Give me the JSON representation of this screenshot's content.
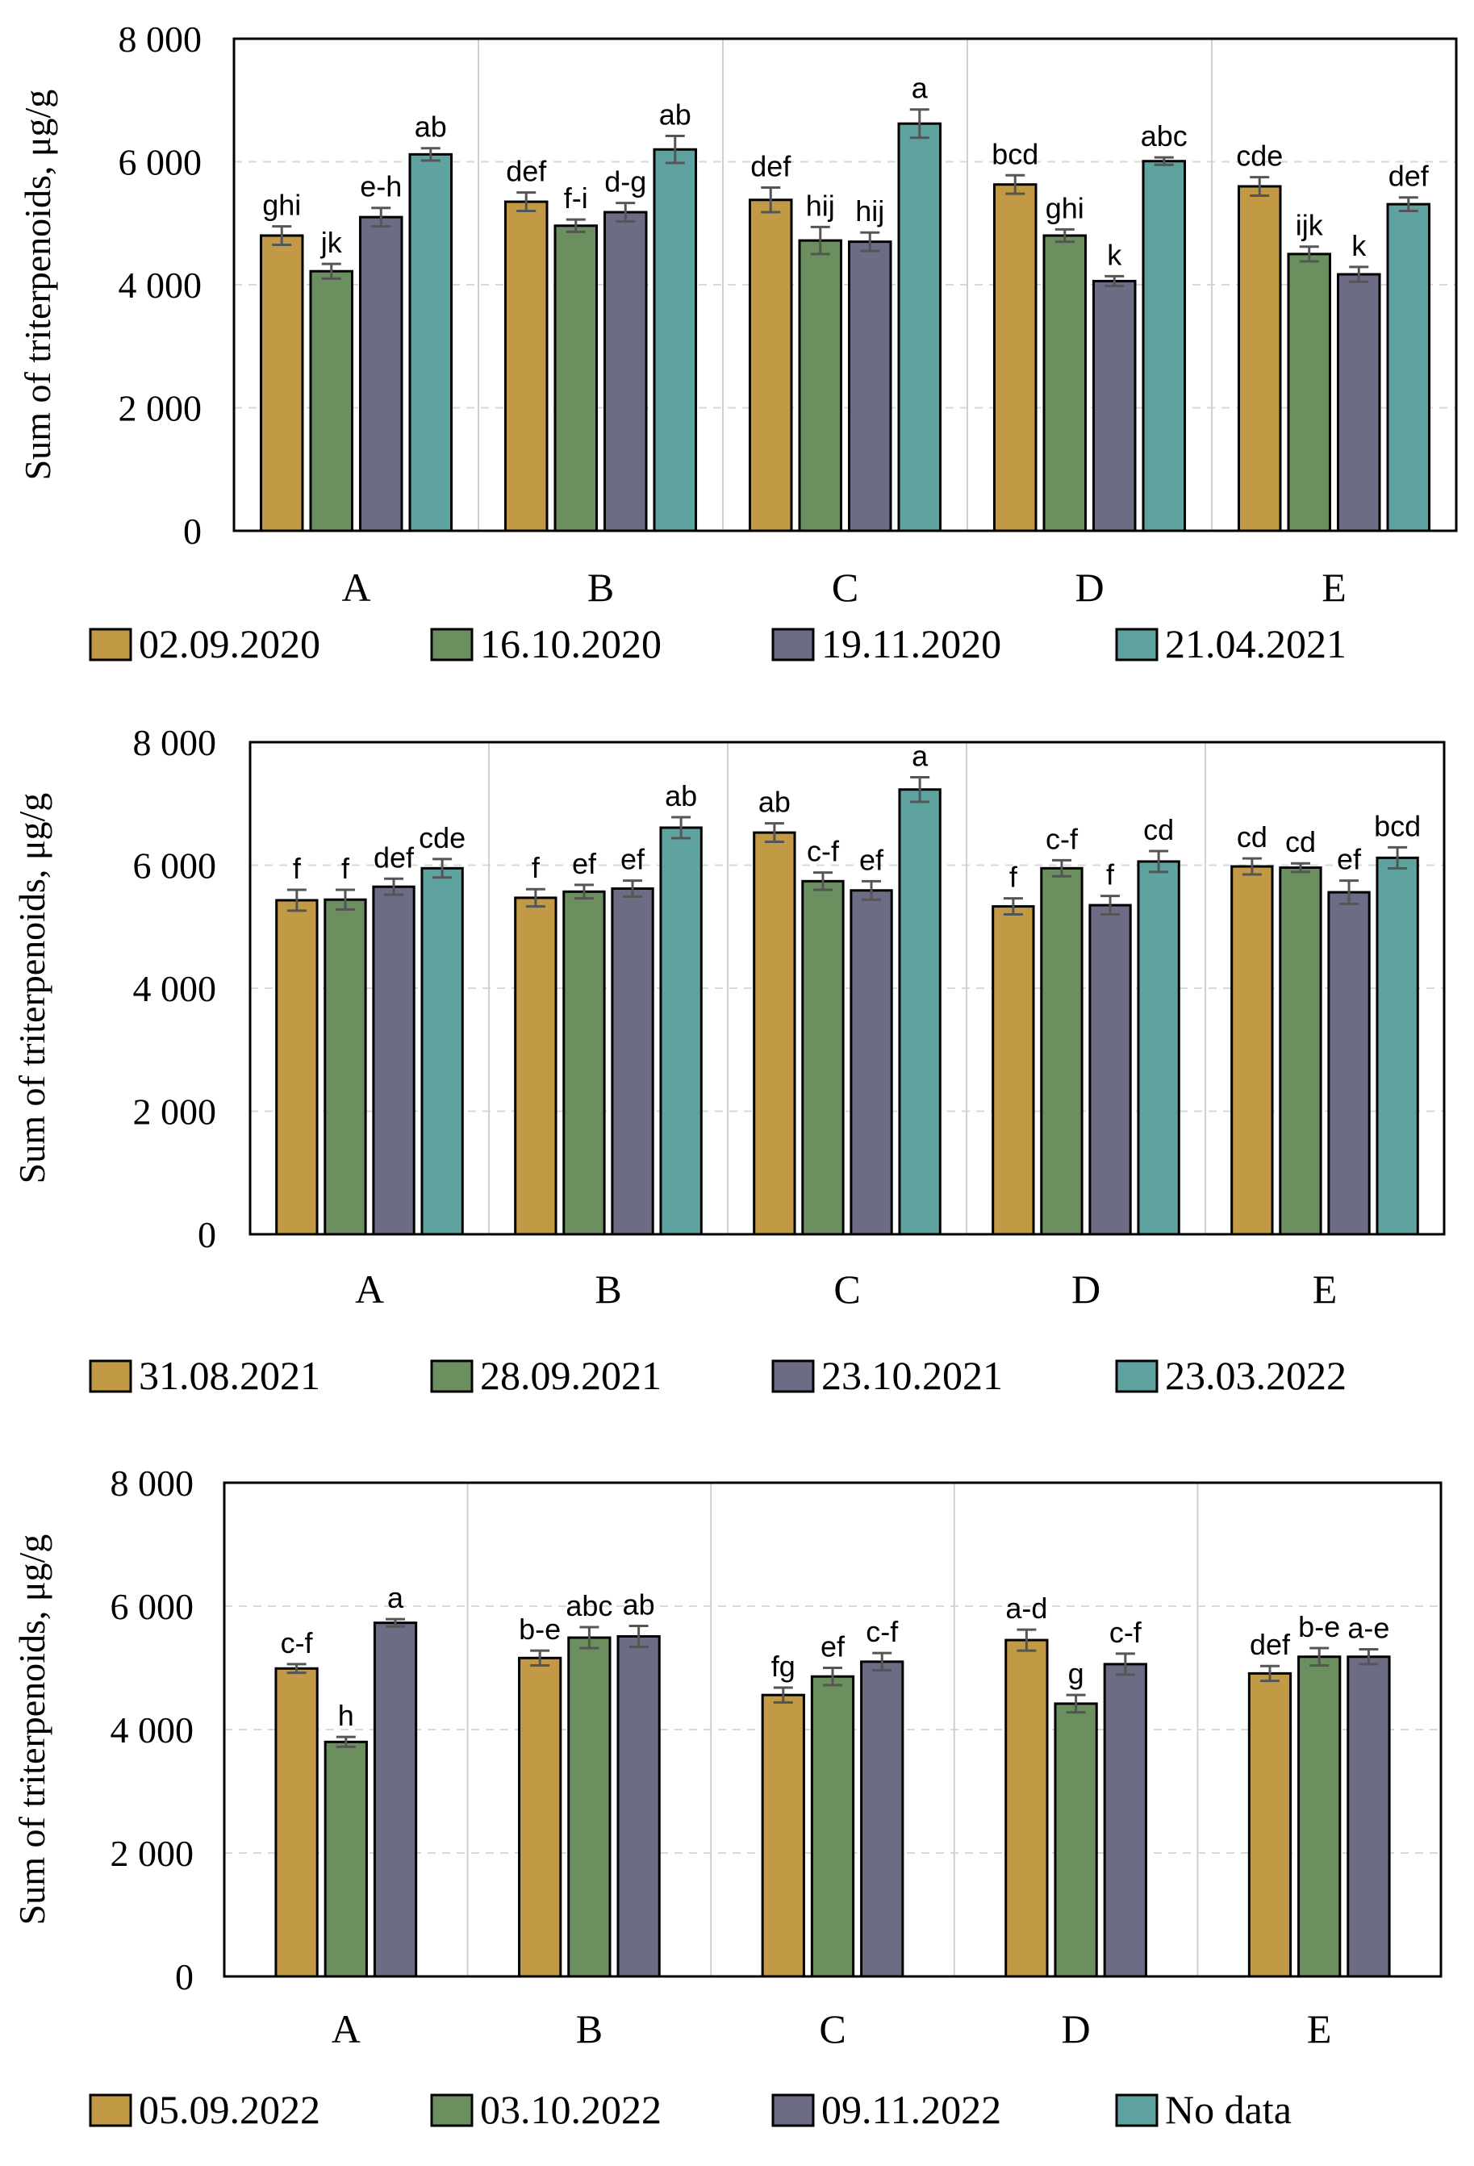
{
  "colors": {
    "series": [
      "#c29a45",
      "#6b8f5e",
      "#6c6d84",
      "#5ea39f"
    ],
    "gridline": "#d9d9d9",
    "separator": "#d0d0d0",
    "errorbar": "#555555",
    "axis": "#000000"
  },
  "chart_data": [
    {
      "type": "bar",
      "categories": [
        "A",
        "B",
        "C",
        "D",
        "E"
      ],
      "ylabel": "Sum of triterpenoids, μg/g",
      "ylim": [
        0,
        8000
      ],
      "yticks": [
        0,
        2000,
        4000,
        6000,
        8000
      ],
      "ytick_labels": [
        "0",
        "2 000",
        "4 000",
        "6 000",
        "8 000"
      ],
      "grid": "horizontal dashed",
      "legend_position": "bottom",
      "series": [
        {
          "name": "02.09.2020",
          "values": [
            4800,
            5350,
            5380,
            5630,
            5600
          ],
          "errors": [
            150,
            150,
            200,
            150,
            150
          ],
          "labels": [
            "ghi",
            "def",
            "def",
            "bcd",
            "cde"
          ]
        },
        {
          "name": "16.10.2020",
          "values": [
            4220,
            4960,
            4720,
            4800,
            4500
          ],
          "errors": [
            120,
            100,
            220,
            100,
            120
          ],
          "labels": [
            "jk",
            "f-i",
            "hij",
            "ghi",
            "ijk"
          ]
        },
        {
          "name": "19.11.2020",
          "values": [
            5100,
            5180,
            4700,
            4060,
            4170
          ],
          "errors": [
            150,
            150,
            150,
            80,
            120
          ],
          "labels": [
            "e-h",
            "d-g",
            "hij",
            "k",
            "k"
          ]
        },
        {
          "name": "21.04.2021",
          "values": [
            6120,
            6200,
            6620,
            6010,
            5310
          ],
          "errors": [
            100,
            220,
            230,
            60,
            110
          ],
          "labels": [
            "ab",
            "ab",
            "a",
            "abc",
            "def"
          ]
        }
      ]
    },
    {
      "type": "bar",
      "categories": [
        "A",
        "B",
        "C",
        "D",
        "E"
      ],
      "ylabel": "Sum of triterpenoids, μg/g",
      "ylim": [
        0,
        8000
      ],
      "yticks": [
        0,
        2000,
        4000,
        6000,
        8000
      ],
      "ytick_labels": [
        "0",
        "2 000",
        "4 000",
        "6 000",
        "8 000"
      ],
      "grid": "horizontal dashed",
      "legend_position": "bottom",
      "series": [
        {
          "name": "31.08.2021",
          "values": [
            5430,
            5470,
            6530,
            5330,
            5980
          ],
          "errors": [
            170,
            140,
            150,
            130,
            130
          ],
          "labels": [
            "f",
            "f",
            "ab",
            "f",
            "cd"
          ]
        },
        {
          "name": "28.09.2021",
          "values": [
            5440,
            5570,
            5740,
            5950,
            5960
          ],
          "errors": [
            160,
            110,
            140,
            130,
            70
          ],
          "labels": [
            "f",
            "ef",
            "c-f",
            "c-f",
            "cd"
          ]
        },
        {
          "name": "23.10.2021",
          "values": [
            5650,
            5620,
            5590,
            5350,
            5560
          ],
          "errors": [
            130,
            130,
            150,
            150,
            190
          ],
          "labels": [
            "def",
            "ef",
            "ef",
            "f",
            "ef"
          ]
        },
        {
          "name": "23.03.2022",
          "values": [
            5950,
            6610,
            7230,
            6060,
            6120
          ],
          "errors": [
            150,
            170,
            200,
            170,
            170
          ],
          "labels": [
            "cde",
            "ab",
            "a",
            "cd",
            "bcd"
          ]
        }
      ]
    },
    {
      "type": "bar",
      "categories": [
        "A",
        "B",
        "C",
        "D",
        "E"
      ],
      "ylabel": "Sum of triterpenoids, μg/g",
      "ylim": [
        0,
        8000
      ],
      "yticks": [
        0,
        2000,
        4000,
        6000,
        8000
      ],
      "ytick_labels": [
        "0",
        "2 000",
        "4 000",
        "6 000",
        "8 000"
      ],
      "grid": "horizontal dashed",
      "legend_position": "bottom",
      "series": [
        {
          "name": "05.09.2022",
          "values": [
            4990,
            5160,
            4560,
            5450,
            4910
          ],
          "errors": [
            70,
            120,
            120,
            170,
            120
          ],
          "labels": [
            "c-f",
            "b-e",
            "fg",
            "a-d",
            "def"
          ]
        },
        {
          "name": "03.10.2022",
          "values": [
            3800,
            5490,
            4860,
            4420,
            5180
          ],
          "errors": [
            80,
            170,
            140,
            140,
            140
          ],
          "labels": [
            "h",
            "abc",
            "ef",
            "g",
            "b-e"
          ]
        },
        {
          "name": "09.11.2022",
          "values": [
            5730,
            5510,
            5100,
            5060,
            5180
          ],
          "errors": [
            60,
            170,
            140,
            170,
            120
          ],
          "labels": [
            "a",
            "ab",
            "c-f",
            "c-f",
            "a-e"
          ]
        },
        {
          "name": "No data",
          "values": [
            null,
            null,
            null,
            null,
            null
          ],
          "errors": [
            null,
            null,
            null,
            null,
            null
          ],
          "labels": [
            "",
            "",
            "",
            "",
            ""
          ]
        }
      ]
    }
  ]
}
